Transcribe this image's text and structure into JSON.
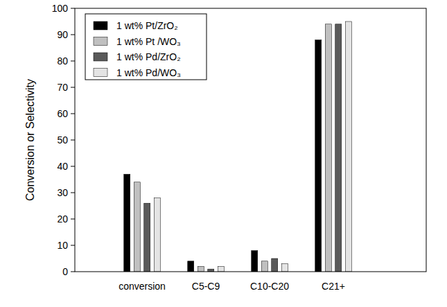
{
  "chart_data": {
    "type": "bar",
    "y_label": "Conversion or Selectivity",
    "categories": [
      "conversion",
      "C5-C9",
      "C10-C20",
      "C21+"
    ],
    "series": [
      {
        "name": "1 wt% Pt/ZrO₂",
        "color": "#000000",
        "values": [
          37,
          4,
          8,
          88
        ]
      },
      {
        "name": "1 wt% Pt /WO₃",
        "color": "#c0c0c0",
        "values": [
          34,
          2,
          4,
          94
        ]
      },
      {
        "name": "1 wt% Pd/ZrO₂",
        "color": "#5a5a5a",
        "values": [
          26,
          1,
          5,
          94
        ]
      },
      {
        "name": "1 wt% Pd/WO₃",
        "color": "#e4e4e4",
        "values": [
          28,
          2,
          3,
          95
        ]
      }
    ],
    "ylim": [
      0,
      100
    ],
    "yticks": [
      0,
      10,
      20,
      30,
      40,
      50,
      60,
      70,
      80,
      90,
      100
    ],
    "grid": false,
    "legend": "upper left"
  }
}
